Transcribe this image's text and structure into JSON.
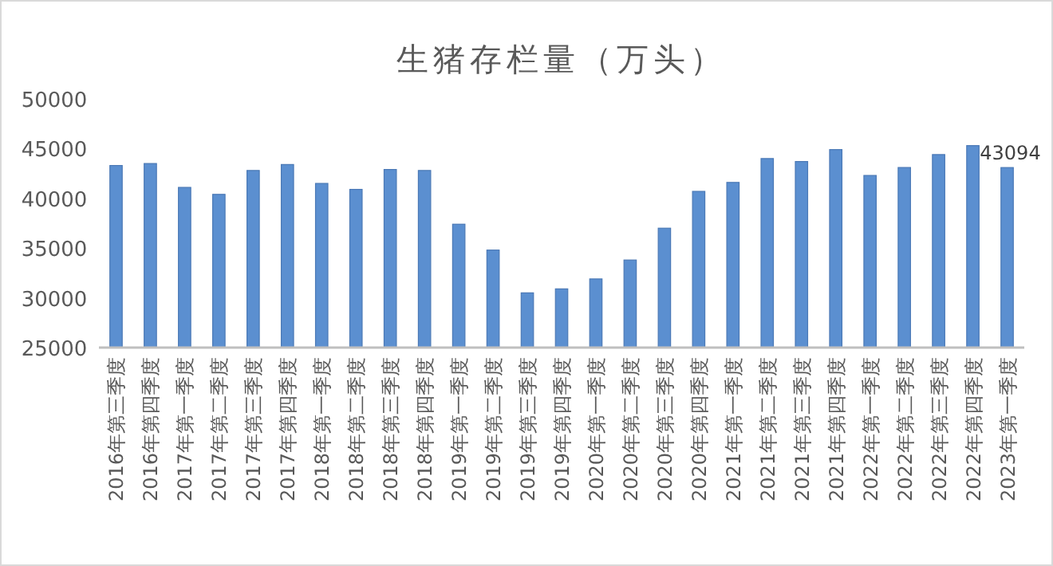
{
  "chart_data": {
    "type": "bar",
    "title": "生猪存栏量（万头）",
    "categories": [
      "2016年第三季度",
      "2016年第四季度",
      "2017年第一季度",
      "2017年第二季度",
      "2017年第三季度",
      "2017年第四季度",
      "2018年第一季度",
      "2018年第二季度",
      "2018年第三季度",
      "2018年第四季度",
      "2019年第一季度",
      "2019年第二季度",
      "2019年第三季度",
      "2019年第四季度",
      "2020年第一季度",
      "2020年第二季度",
      "2020年第三季度",
      "2020年第四季度",
      "2021年第一季度",
      "2021年第二季度",
      "2021年第三季度",
      "2021年第四季度",
      "2022年第一季度",
      "2022年第二季度",
      "2022年第三季度",
      "2022年第四季度",
      "2023年第一季度"
    ],
    "values": [
      43300,
      43500,
      41100,
      40400,
      42800,
      43400,
      41500,
      40900,
      42900,
      42800,
      37400,
      34800,
      30500,
      30900,
      31900,
      33800,
      37000,
      40700,
      41600,
      44000,
      43700,
      44900,
      42300,
      43100,
      44400,
      45300,
      43094
    ],
    "value_labels": [
      null,
      null,
      null,
      null,
      null,
      null,
      null,
      null,
      null,
      null,
      null,
      null,
      null,
      null,
      null,
      null,
      null,
      null,
      null,
      null,
      null,
      null,
      null,
      null,
      null,
      null,
      "43094"
    ],
    "color": "#5b8fd0",
    "ylim": [
      25000,
      50000
    ],
    "yticks": [
      25000,
      30000,
      35000,
      40000,
      45000,
      50000
    ],
    "grid": false
  }
}
